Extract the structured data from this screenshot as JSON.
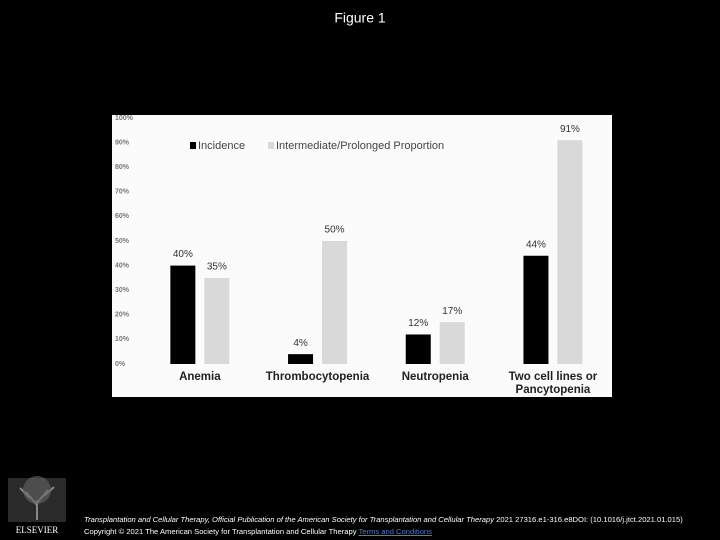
{
  "title": "Figure 1",
  "chart_data": {
    "type": "bar",
    "categories": [
      "Anemia",
      "Thrombocytopenia",
      "Neutropenia",
      "Two cell lines or Pancytopenia"
    ],
    "series": [
      {
        "name": "Incidence",
        "color": "#000000",
        "values": [
          40,
          4,
          12,
          44
        ],
        "value_labels": [
          "40%",
          "4%",
          "12%",
          "44%"
        ]
      },
      {
        "name": "Intermediate/Prolonged Proportion",
        "color": "#d9d9d9",
        "values": [
          35,
          50,
          17,
          91
        ],
        "value_labels": [
          "35%",
          "50%",
          "17%",
          "91%"
        ]
      }
    ],
    "ylim": [
      0,
      100
    ],
    "yticks": [
      {
        "value": 0,
        "label": "0%"
      },
      {
        "value": 10,
        "label": "10%"
      },
      {
        "value": 20,
        "label": "20%"
      },
      {
        "value": 30,
        "label": "30%"
      },
      {
        "value": 40,
        "label": "40%"
      },
      {
        "value": 50,
        "label": "50%"
      },
      {
        "value": 60,
        "label": "60%"
      },
      {
        "value": 70,
        "label": "70%"
      },
      {
        "value": 80,
        "label": "80%"
      },
      {
        "value": 90,
        "label": "90%"
      },
      {
        "value": 100,
        "label": "100%"
      }
    ],
    "grid": false,
    "legend": "top"
  },
  "footer": {
    "journal": "Transplantation and Cellular Therapy, Official Publication of the American Society for Transplantation and Cellular Therapy",
    "citation": "2021 27316.e1-316.e8DOI: (10.1016/j.jtct.2021.01.015)",
    "copyright": "Copyright © 2021 The American Society for Transplantation and Cellular Therapy",
    "link": "Terms and Conditions",
    "logo": "ELSEVIER"
  }
}
